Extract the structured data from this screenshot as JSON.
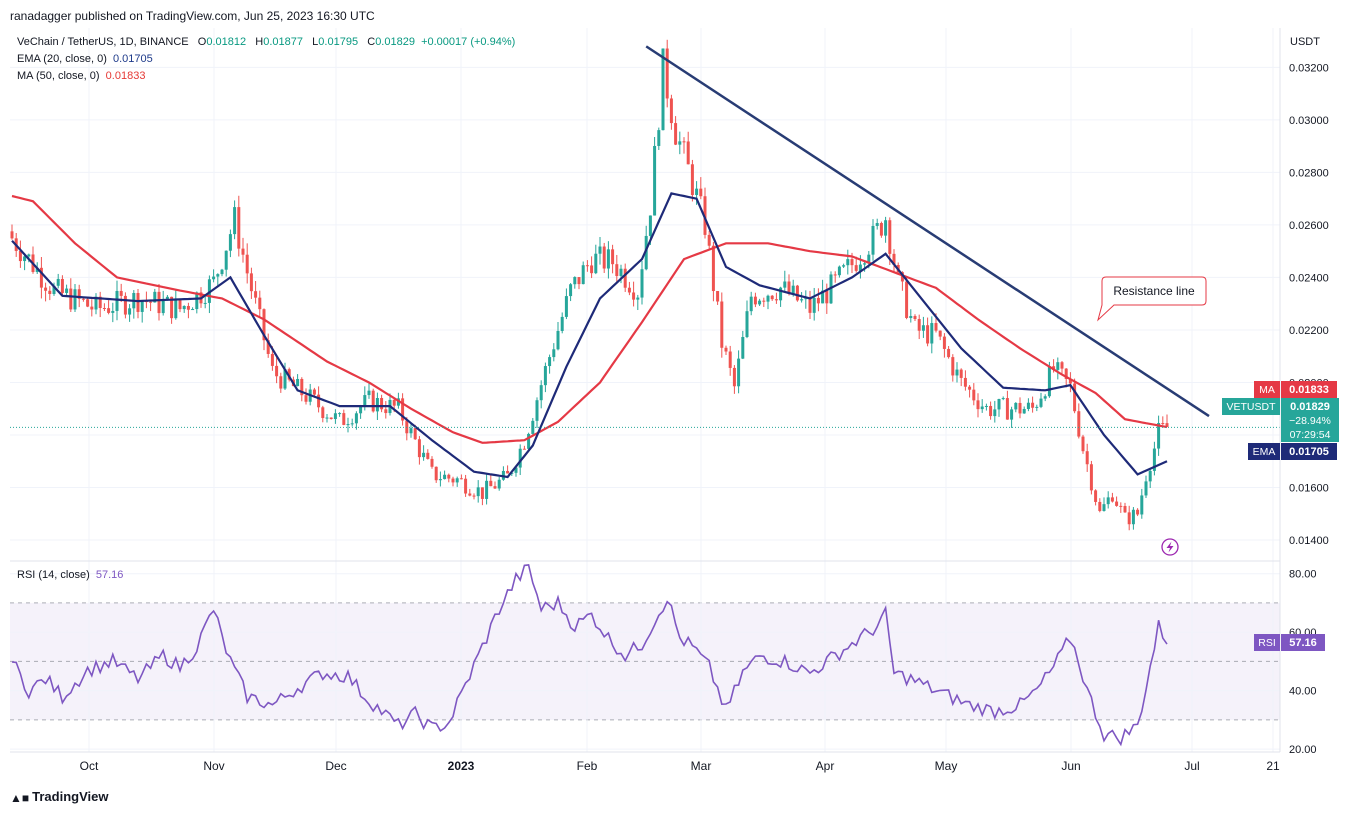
{
  "header": {
    "published": "ranadagger published on TradingView.com, Jun 25, 2023 16:30 UTC"
  },
  "symbol": {
    "name": "VeChain / TetherUS, 1D, BINANCE",
    "o_label": "O",
    "o": "0.01812",
    "h_label": "H",
    "h": "0.01877",
    "l_label": "L",
    "l": "0.01795",
    "c_label": "C",
    "c": "0.01829",
    "change": "+0.00017 (+0.94%)"
  },
  "indicators": {
    "ema_label": "EMA (20, close, 0)",
    "ema_value": "0.01705",
    "ma_label": "MA (50, close, 0)",
    "ma_value": "0.01833",
    "rsi_label": "RSI (14, close)",
    "rsi_value": "57.16"
  },
  "price_axis": {
    "currency": "USDT",
    "ticks": [
      "0.03200",
      "0.03000",
      "0.02800",
      "0.02600",
      "0.02400",
      "0.02200",
      "0.02000",
      "0.01800",
      "0.01600",
      "0.01400"
    ]
  },
  "rsi_axis": {
    "ticks": [
      "80.00",
      "60.00",
      "40.00",
      "20.00"
    ]
  },
  "time_axis": {
    "ticks": [
      "Oct",
      "Nov",
      "Dec",
      "2023",
      "Feb",
      "Mar",
      "Apr",
      "May",
      "Jun",
      "Jul",
      "21"
    ]
  },
  "badges": {
    "ma": {
      "label": "MA",
      "value": "0.01833"
    },
    "last": {
      "label": "VETUSDT",
      "value": "0.01829",
      "change": "−28.94%",
      "countdown": "07:29:54"
    },
    "ema": {
      "label": "EMA",
      "value": "0.01705"
    },
    "rsi": {
      "label": "RSI",
      "value": "57.16"
    }
  },
  "annotation": {
    "text": "Resistance line"
  },
  "brand": "TradingView",
  "colors": {
    "up": "#26a69a",
    "down": "#ef5350",
    "ema": "#1e2a78",
    "ma": "#e53945",
    "rsi": "#7e57c2",
    "trend": "#283c74"
  },
  "chart_data": {
    "type": "candlestick",
    "title": "VeChain / TetherUS, 1D, BINANCE",
    "price_ylim": [
      0.0132,
      0.0335
    ],
    "rsi_ylim": [
      19,
      84
    ],
    "rsi_bands": [
      30,
      50,
      70
    ],
    "x_range": [
      "2023-09-12",
      "2023-07-23"
    ],
    "month_ticks": [
      "Oct",
      "Nov",
      "Dec",
      "2023",
      "Feb",
      "Mar",
      "Apr",
      "May",
      "Jun",
      "Jul",
      "21"
    ],
    "close_anchors": [
      {
        "i": 0,
        "p": 0.0255
      },
      {
        "i": 10,
        "p": 0.0235
      },
      {
        "i": 20,
        "p": 0.0228
      },
      {
        "i": 30,
        "p": 0.0232
      },
      {
        "i": 40,
        "p": 0.0228
      },
      {
        "i": 48,
        "p": 0.0238
      },
      {
        "i": 53,
        "p": 0.0262
      },
      {
        "i": 56,
        "p": 0.0242
      },
      {
        "i": 62,
        "p": 0.0204
      },
      {
        "i": 70,
        "p": 0.0195
      },
      {
        "i": 78,
        "p": 0.0185
      },
      {
        "i": 85,
        "p": 0.0193
      },
      {
        "i": 92,
        "p": 0.019
      },
      {
        "i": 100,
        "p": 0.0165
      },
      {
        "i": 106,
        "p": 0.0163
      },
      {
        "i": 112,
        "p": 0.0158
      },
      {
        "i": 118,
        "p": 0.0164
      },
      {
        "i": 122,
        "p": 0.0178
      },
      {
        "i": 128,
        "p": 0.021
      },
      {
        "i": 133,
        "p": 0.0235
      },
      {
        "i": 138,
        "p": 0.0247
      },
      {
        "i": 143,
        "p": 0.0246
      },
      {
        "i": 149,
        "p": 0.0235
      },
      {
        "i": 152,
        "p": 0.0268
      },
      {
        "i": 155,
        "p": 0.032
      },
      {
        "i": 158,
        "p": 0.0296
      },
      {
        "i": 162,
        "p": 0.0276
      },
      {
        "i": 165,
        "p": 0.026
      },
      {
        "i": 169,
        "p": 0.0215
      },
      {
        "i": 172,
        "p": 0.0198
      },
      {
        "i": 176,
        "p": 0.0233
      },
      {
        "i": 183,
        "p": 0.0236
      },
      {
        "i": 190,
        "p": 0.0228
      },
      {
        "i": 195,
        "p": 0.0236
      },
      {
        "i": 200,
        "p": 0.0245
      },
      {
        "i": 205,
        "p": 0.0255
      },
      {
        "i": 208,
        "p": 0.0263
      },
      {
        "i": 211,
        "p": 0.0238
      },
      {
        "i": 215,
        "p": 0.022
      },
      {
        "i": 220,
        "p": 0.0218
      },
      {
        "i": 226,
        "p": 0.02
      },
      {
        "i": 232,
        "p": 0.019
      },
      {
        "i": 238,
        "p": 0.019
      },
      {
        "i": 243,
        "p": 0.019
      },
      {
        "i": 248,
        "p": 0.0205
      },
      {
        "i": 252,
        "p": 0.0198
      },
      {
        "i": 255,
        "p": 0.0175
      },
      {
        "i": 259,
        "p": 0.015
      },
      {
        "i": 262,
        "p": 0.0158
      },
      {
        "i": 265,
        "p": 0.0148
      },
      {
        "i": 268,
        "p": 0.015
      },
      {
        "i": 270,
        "p": 0.0165
      },
      {
        "i": 272,
        "p": 0.0175
      },
      {
        "i": 273,
        "p": 0.0181
      },
      {
        "i": 275,
        "p": 0.0183
      }
    ],
    "ema_anchors": [
      {
        "i": 0,
        "p": 0.0254
      },
      {
        "i": 12,
        "p": 0.0233
      },
      {
        "i": 30,
        "p": 0.0231
      },
      {
        "i": 45,
        "p": 0.0232
      },
      {
        "i": 52,
        "p": 0.024
      },
      {
        "i": 60,
        "p": 0.0218
      },
      {
        "i": 68,
        "p": 0.0197
      },
      {
        "i": 78,
        "p": 0.0191
      },
      {
        "i": 90,
        "p": 0.0191
      },
      {
        "i": 100,
        "p": 0.0178
      },
      {
        "i": 110,
        "p": 0.0166
      },
      {
        "i": 118,
        "p": 0.0164
      },
      {
        "i": 124,
        "p": 0.0176
      },
      {
        "i": 132,
        "p": 0.0206
      },
      {
        "i": 140,
        "p": 0.0232
      },
      {
        "i": 150,
        "p": 0.0247
      },
      {
        "i": 157,
        "p": 0.0272
      },
      {
        "i": 163,
        "p": 0.027
      },
      {
        "i": 170,
        "p": 0.0244
      },
      {
        "i": 178,
        "p": 0.0237
      },
      {
        "i": 190,
        "p": 0.0232
      },
      {
        "i": 200,
        "p": 0.024
      },
      {
        "i": 208,
        "p": 0.0249
      },
      {
        "i": 216,
        "p": 0.0233
      },
      {
        "i": 226,
        "p": 0.0213
      },
      {
        "i": 236,
        "p": 0.0198
      },
      {
        "i": 246,
        "p": 0.0197
      },
      {
        "i": 252,
        "p": 0.0199
      },
      {
        "i": 260,
        "p": 0.018
      },
      {
        "i": 268,
        "p": 0.0165
      },
      {
        "i": 275,
        "p": 0.017
      }
    ],
    "ma_anchors": [
      {
        "i": 0,
        "p": 0.0271
      },
      {
        "i": 5,
        "p": 0.0269
      },
      {
        "i": 15,
        "p": 0.0253
      },
      {
        "i": 25,
        "p": 0.024
      },
      {
        "i": 40,
        "p": 0.0235
      },
      {
        "i": 50,
        "p": 0.0232
      },
      {
        "i": 60,
        "p": 0.0224
      },
      {
        "i": 75,
        "p": 0.0208
      },
      {
        "i": 85,
        "p": 0.02
      },
      {
        "i": 95,
        "p": 0.019
      },
      {
        "i": 105,
        "p": 0.0181
      },
      {
        "i": 112,
        "p": 0.0177
      },
      {
        "i": 122,
        "p": 0.0178
      },
      {
        "i": 130,
        "p": 0.0185
      },
      {
        "i": 140,
        "p": 0.02
      },
      {
        "i": 150,
        "p": 0.0223
      },
      {
        "i": 160,
        "p": 0.0247
      },
      {
        "i": 170,
        "p": 0.0253
      },
      {
        "i": 180,
        "p": 0.0253
      },
      {
        "i": 190,
        "p": 0.025
      },
      {
        "i": 200,
        "p": 0.0248
      },
      {
        "i": 210,
        "p": 0.0242
      },
      {
        "i": 220,
        "p": 0.0236
      },
      {
        "i": 230,
        "p": 0.0224
      },
      {
        "i": 240,
        "p": 0.0213
      },
      {
        "i": 250,
        "p": 0.0203
      },
      {
        "i": 258,
        "p": 0.0196
      },
      {
        "i": 265,
        "p": 0.0186
      },
      {
        "i": 275,
        "p": 0.0183
      }
    ],
    "rsi_anchors": [
      {
        "i": 0,
        "v": 50
      },
      {
        "i": 4,
        "v": 40
      },
      {
        "i": 8,
        "v": 44
      },
      {
        "i": 12,
        "v": 38
      },
      {
        "i": 18,
        "v": 47
      },
      {
        "i": 24,
        "v": 50
      },
      {
        "i": 30,
        "v": 44
      },
      {
        "i": 36,
        "v": 52
      },
      {
        "i": 40,
        "v": 48
      },
      {
        "i": 44,
        "v": 55
      },
      {
        "i": 48,
        "v": 68
      },
      {
        "i": 50,
        "v": 58
      },
      {
        "i": 52,
        "v": 50
      },
      {
        "i": 56,
        "v": 38
      },
      {
        "i": 62,
        "v": 35
      },
      {
        "i": 68,
        "v": 41
      },
      {
        "i": 74,
        "v": 46
      },
      {
        "i": 80,
        "v": 45
      },
      {
        "i": 84,
        "v": 38
      },
      {
        "i": 88,
        "v": 33
      },
      {
        "i": 92,
        "v": 28
      },
      {
        "i": 96,
        "v": 32
      },
      {
        "i": 100,
        "v": 27
      },
      {
        "i": 104,
        "v": 29
      },
      {
        "i": 108,
        "v": 42
      },
      {
        "i": 112,
        "v": 55
      },
      {
        "i": 116,
        "v": 68
      },
      {
        "i": 120,
        "v": 78
      },
      {
        "i": 123,
        "v": 82
      },
      {
        "i": 126,
        "v": 68
      },
      {
        "i": 130,
        "v": 70
      },
      {
        "i": 134,
        "v": 62
      },
      {
        "i": 138,
        "v": 66
      },
      {
        "i": 142,
        "v": 58
      },
      {
        "i": 146,
        "v": 52
      },
      {
        "i": 150,
        "v": 56
      },
      {
        "i": 153,
        "v": 64
      },
      {
        "i": 156,
        "v": 72
      },
      {
        "i": 159,
        "v": 58
      },
      {
        "i": 162,
        "v": 55
      },
      {
        "i": 166,
        "v": 48
      },
      {
        "i": 170,
        "v": 33
      },
      {
        "i": 174,
        "v": 46
      },
      {
        "i": 178,
        "v": 52
      },
      {
        "i": 184,
        "v": 50
      },
      {
        "i": 190,
        "v": 46
      },
      {
        "i": 196,
        "v": 52
      },
      {
        "i": 202,
        "v": 58
      },
      {
        "i": 206,
        "v": 62
      },
      {
        "i": 208,
        "v": 66
      },
      {
        "i": 210,
        "v": 46
      },
      {
        "i": 214,
        "v": 44
      },
      {
        "i": 220,
        "v": 40
      },
      {
        "i": 228,
        "v": 35
      },
      {
        "i": 234,
        "v": 33
      },
      {
        "i": 240,
        "v": 35
      },
      {
        "i": 244,
        "v": 40
      },
      {
        "i": 248,
        "v": 48
      },
      {
        "i": 252,
        "v": 58
      },
      {
        "i": 254,
        "v": 50
      },
      {
        "i": 256,
        "v": 40
      },
      {
        "i": 260,
        "v": 25
      },
      {
        "i": 264,
        "v": 24
      },
      {
        "i": 268,
        "v": 28
      },
      {
        "i": 271,
        "v": 48
      },
      {
        "i": 273,
        "v": 62
      },
      {
        "i": 275,
        "v": 57
      }
    ],
    "candle_count": 276,
    "trendline": [
      {
        "i": 151,
        "p": 0.0328
      },
      {
        "i": 285,
        "p": 0.01872
      }
    ],
    "last_close": 0.01829
  }
}
